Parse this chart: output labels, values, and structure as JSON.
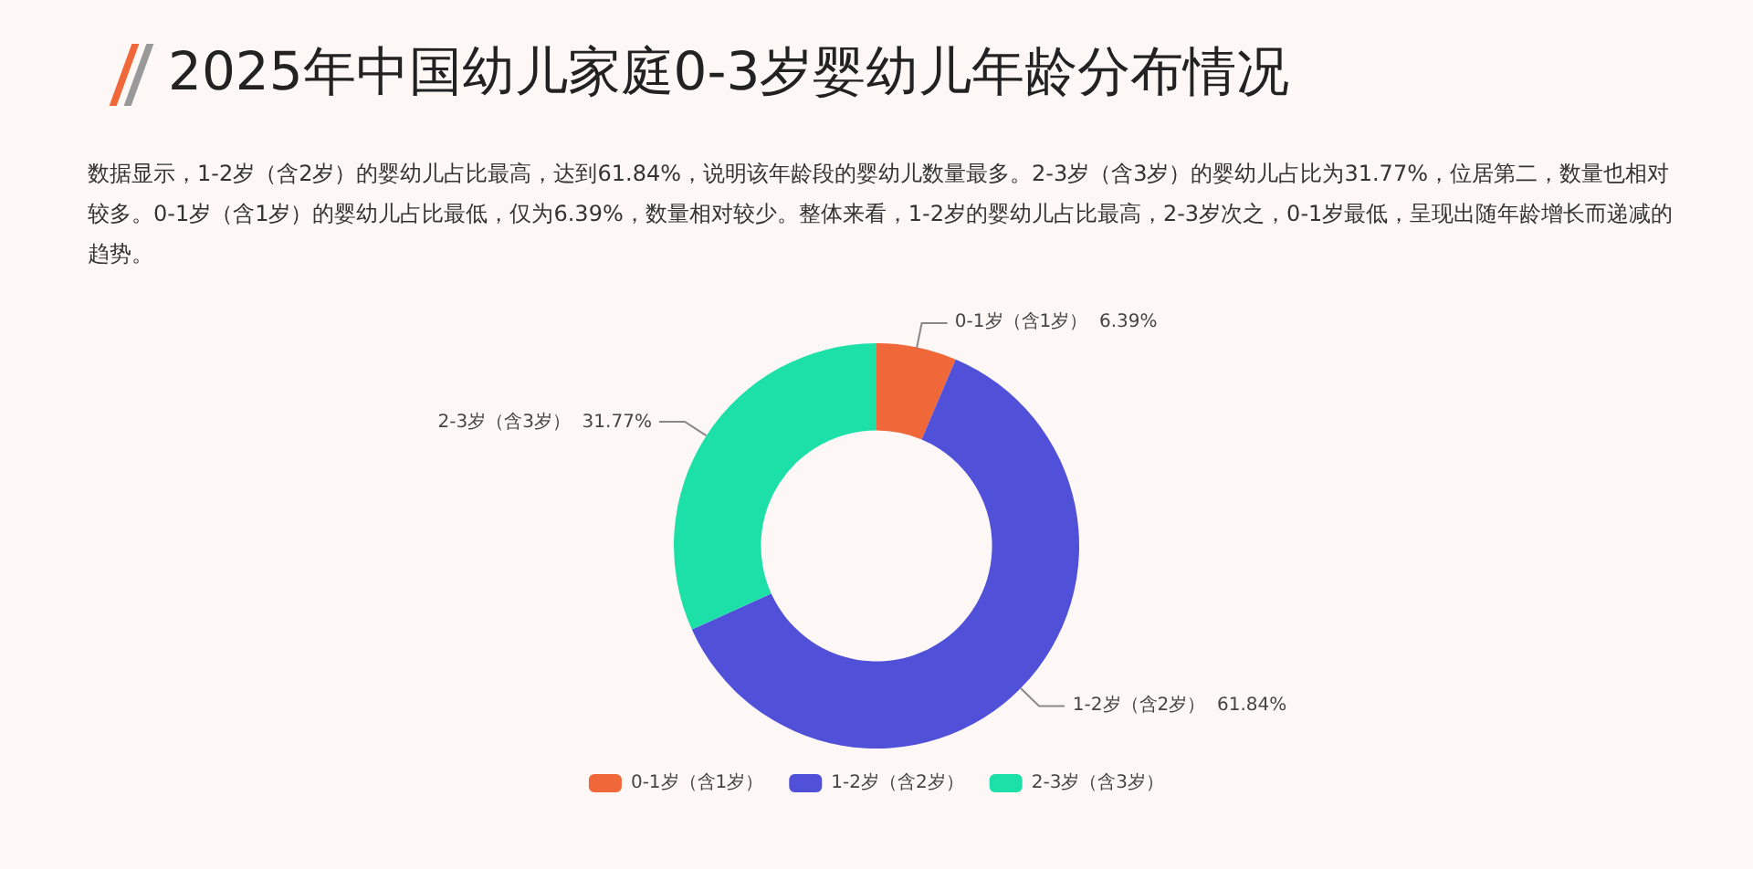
{
  "chart_data": {
    "type": "donut",
    "title": "2025年中国幼儿家庭0-3岁婴幼儿年龄分布情况",
    "subtitle": "数据显示，1-2岁（含2岁）的婴幼儿占比最高，达到61.84%，说明该年龄段的婴幼儿数量最多。2-3岁（含3岁）的婴幼儿占比为31.77%，位居第二，数量也相对较多。0-1岁（含1岁）的婴幼儿占比最低，仅为6.39%，数量相对较少。整体来看，1-2岁的婴幼儿占比最高，2-3岁次之，0-1岁最低，呈现出随年龄增长而递减的趋势。",
    "categories": [
      "0-1岁（含1岁）",
      "1-2岁（含2岁）",
      "2-3岁（含3岁）"
    ],
    "values": [
      6.39,
      61.84,
      31.77
    ],
    "value_labels": [
      "6.39%",
      "61.84%",
      "31.77%"
    ],
    "colors": [
      "#f0673a",
      "#5050d8",
      "#1de0a8"
    ],
    "legend": "bottom"
  }
}
